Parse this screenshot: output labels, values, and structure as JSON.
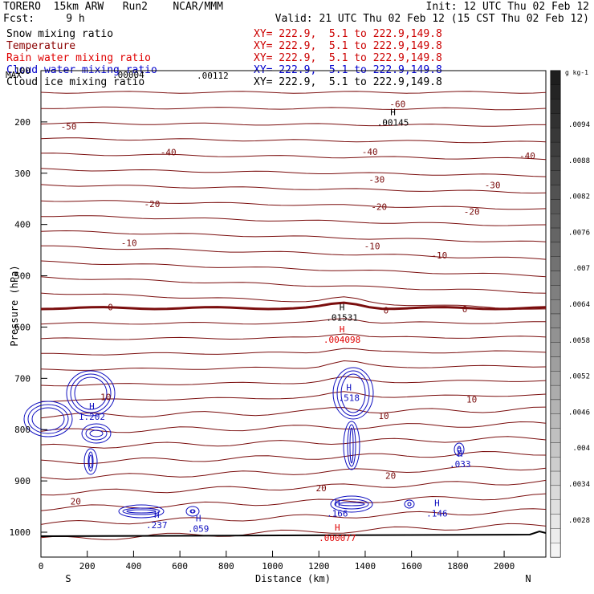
{
  "header": {
    "model": "TORERO  15km ARW   Run2    NCAR/MMM",
    "init": "Init: 12 UTC Thu 02 Feb 12",
    "fcst": "Fcst:     9 h",
    "valid": "Valid: 21 UTC Thu 02 Feb 12 (15 CST Thu 02 Feb 12)"
  },
  "fields": [
    {
      "name": "Snow mixing ratio",
      "color": "#000000",
      "xy": "XY= 222.9,  5.1 to 222.9,149.8"
    },
    {
      "name": "Temperature",
      "color": "#8b0000",
      "xy": "XY= 222.9,  5.1 to 222.9,149.8"
    },
    {
      "name": "Rain water mixing ratio",
      "color": "#e00000",
      "xy": "XY= 222.9,  5.1 to 222.9,149.8"
    },
    {
      "name": "Cloud water mixing ratio",
      "color": "#0000cc",
      "xy": "XY= 222.9,  5.1 to 222.9,149.8"
    },
    {
      "name": "Cloud ice mixing ratio",
      "color": "#000000",
      "xy": "XY= 222.9,  5.1 to 222.9,149.8"
    }
  ],
  "overlay_text": {
    "max_label": "MAX",
    "max_value": ".00004",
    "ice_value": ".00112"
  },
  "chart_data": {
    "type": "contour",
    "xlabel": "Distance (km)",
    "ylabel": "Pressure (hPa)",
    "x_ticks": [
      0,
      200,
      400,
      600,
      800,
      1000,
      1200,
      1400,
      1600,
      1800,
      2000
    ],
    "y_ticks": [
      100,
      200,
      300,
      400,
      500,
      600,
      700,
      800,
      900,
      1000
    ],
    "xlim": [
      0,
      2180
    ],
    "ylim": [
      1050,
      100
    ],
    "direction_left": "S",
    "direction_right": "N",
    "colorbar": {
      "unit": "g kg-1",
      "ticks": [
        ".0094",
        ".0088",
        ".0082",
        ".0076",
        ".007",
        ".0064",
        ".0058",
        ".0052",
        ".0046",
        ".004",
        ".0034",
        ".0028"
      ]
    },
    "temperature_contours": [
      {
        "label": "-60",
        "x": 1540,
        "p": 165
      },
      {
        "label": "-50",
        "x": 120,
        "p": 209
      },
      {
        "label": "-40",
        "x": 550,
        "p": 259
      },
      {
        "label": "-40",
        "x": 1420,
        "p": 258
      },
      {
        "label": "-40",
        "x": 2100,
        "p": 266
      },
      {
        "label": "-30",
        "x": 1450,
        "p": 312
      },
      {
        "label": "-30",
        "x": 1950,
        "p": 323
      },
      {
        "label": "-20",
        "x": 480,
        "p": 360
      },
      {
        "label": "-20",
        "x": 1460,
        "p": 365
      },
      {
        "label": "-20",
        "x": 1860,
        "p": 375
      },
      {
        "label": "-10",
        "x": 380,
        "p": 436
      },
      {
        "label": "-10",
        "x": 1430,
        "p": 442
      },
      {
        "label": "-10",
        "x": 1720,
        "p": 460
      },
      {
        "label": "0",
        "x": 300,
        "p": 561
      },
      {
        "label": "0",
        "x": 1490,
        "p": 567
      },
      {
        "label": "0",
        "x": 1830,
        "p": 565
      },
      {
        "label": "10",
        "x": 280,
        "p": 736
      },
      {
        "label": "10",
        "x": 1480,
        "p": 773
      },
      {
        "label": "10",
        "x": 1860,
        "p": 741
      },
      {
        "label": "20",
        "x": 150,
        "p": 940
      },
      {
        "label": "20",
        "x": 1210,
        "p": 914
      },
      {
        "label": "20",
        "x": 1510,
        "p": 890
      }
    ],
    "extrema": [
      {
        "symbol": "H",
        "value": ".00145",
        "x": 1520,
        "p": 190,
        "field": "Snow mixing ratio"
      },
      {
        "symbol": "H",
        "value": ".01531",
        "x": 1300,
        "p": 570,
        "field": "Cloud ice mixing ratio"
      },
      {
        "symbol": "H",
        "value": ".004098",
        "x": 1300,
        "p": 613,
        "field": "Rain water mixing ratio"
      },
      {
        "symbol": "H",
        "value": "1.202",
        "x": 220,
        "p": 764,
        "field": "Cloud water mixing ratio"
      },
      {
        "symbol": "H",
        "value": ".518",
        "x": 1330,
        "p": 727,
        "field": "Cloud water mixing ratio"
      },
      {
        "symbol": "H",
        "value": ".033",
        "x": 1810,
        "p": 856,
        "field": "Cloud water mixing ratio"
      },
      {
        "symbol": "H",
        "value": ".237",
        "x": 500,
        "p": 975,
        "field": "Cloud water mixing ratio"
      },
      {
        "symbol": "H",
        "value": ".059",
        "x": 680,
        "p": 982,
        "field": "Cloud water mixing ratio"
      },
      {
        "symbol": "H",
        "value": ".166",
        "x": 1280,
        "p": 952,
        "field": "Cloud water mixing ratio"
      },
      {
        "symbol": "H",
        "value": ".146",
        "x": 1710,
        "p": 952,
        "field": "Cloud water mixing ratio"
      },
      {
        "symbol": "H",
        "value": ".000077",
        "x": 1280,
        "p": 1000,
        "field": "Rain water mixing ratio"
      }
    ]
  }
}
